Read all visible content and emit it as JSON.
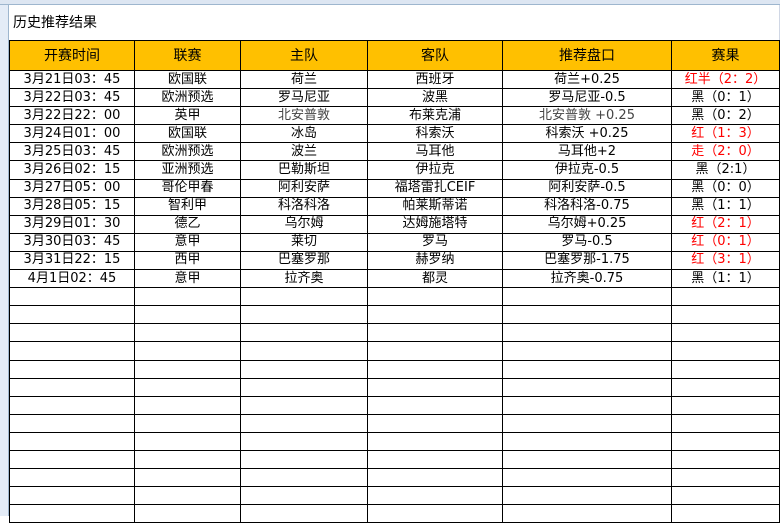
{
  "title": "历史推荐结果",
  "columns": [
    "开赛时间",
    "联赛",
    "主队",
    "客队",
    "推荐盘口",
    "赛果"
  ],
  "rows": [
    [
      "3月21日03：45",
      "欧国联",
      "荷兰",
      "西班牙",
      "荷兰+0.25",
      "红半（2：2）"
    ],
    [
      "3月22日03：45",
      "欧洲预选",
      "罗马尼亚",
      "波黑",
      "罗马尼亚-0.5",
      "黑（0：1）"
    ],
    [
      "3月22日22：00",
      "英甲",
      "北安普敦",
      "布莱克浦",
      "北安普敦 +0.25",
      "黑（0：2）"
    ],
    [
      "3月24日01：00",
      "欧国联",
      "冰岛",
      "科索沃",
      "科索沃 +0.25",
      "红（1：3）"
    ],
    [
      "3月25日03：45",
      "欧洲预选",
      "波兰",
      "马耳他",
      "马耳他+2",
      "走（2：0）"
    ],
    [
      "3月26日02：15",
      "亚洲预选",
      "巴勒斯坦",
      "伊拉克",
      "伊拉克-0.5",
      "黑（2:1）"
    ],
    [
      "3月27日05：00",
      "哥伦甲春",
      "阿利安萨",
      "福塔雷扎CEIF",
      "阿利安萨-0.5",
      "黑（0：0）"
    ],
    [
      "3月28日05：15",
      "智利甲",
      "科洛科洛",
      "帕莱斯蒂诺",
      "科洛科洛-0.75",
      "黑（1：1）"
    ],
    [
      "3月29日01：30",
      "德乙",
      "乌尔姆",
      "达姆施塔特",
      "乌尔姆+0.25",
      "红（2：1）"
    ],
    [
      "3月30日03：45",
      "意甲",
      "莱切",
      "罗马",
      "罗马-0.5",
      "红（0：1）"
    ],
    [
      "3月31日22：15",
      "西甲",
      "巴塞罗那",
      "赫罗纳",
      "巴塞罗那-1.75",
      "红（3：1）"
    ],
    [
      "4月1日02：45",
      "意甲",
      "拉齐奥",
      "都灵",
      "拉齐奥-0.75",
      "黑（1：1）"
    ]
  ],
  "colors": {
    "header_bg": "#ffc000",
    "win": "#ff0000",
    "loss": "#000000"
  }
}
